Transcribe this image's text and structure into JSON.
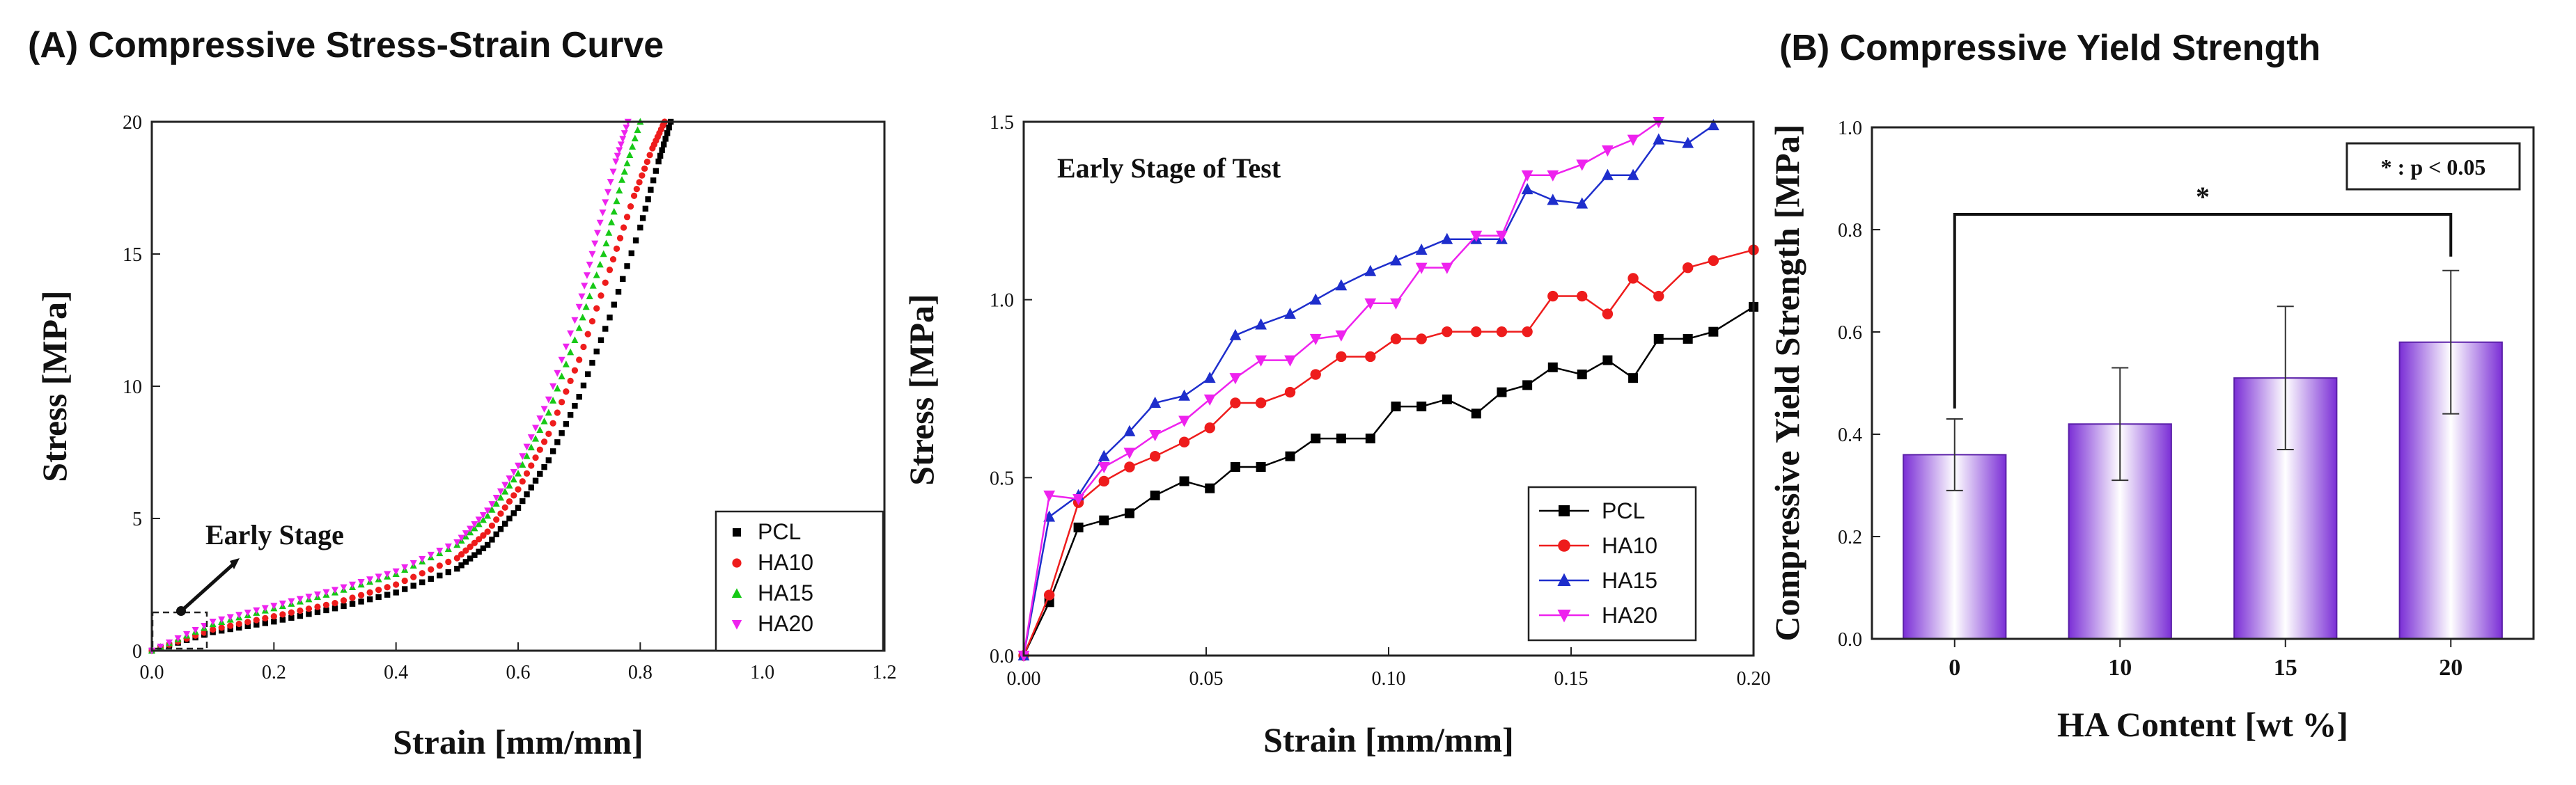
{
  "panel_titles": {
    "a": "(A) Compressive Stress-Strain Curve",
    "b": "(B) Compressive Yield Strength"
  },
  "colors": {
    "PCL": "#000000",
    "HA10": "#ee1c1c",
    "HA15": "#1e2ecc",
    "HA20": "#ee22ee",
    "HA15_scatter": "#16c916",
    "bar_edge": "#7b2fd6",
    "bar_center": "#ffffff"
  },
  "chart_data": [
    {
      "id": "stress-strain-full",
      "type": "scatter",
      "title": "",
      "xlabel": "Strain [mm/mm]",
      "ylabel": "Stress [MPa]",
      "xlim": [
        0,
        1.2
      ],
      "ylim": [
        0,
        20
      ],
      "xticks": [
        0.0,
        0.2,
        0.4,
        0.6,
        0.8,
        1.0,
        1.2
      ],
      "xtick_labels": [
        "0.0",
        "0.2",
        "0.4",
        "0.6",
        "0.8",
        "1.0",
        "1.2"
      ],
      "yticks": [
        0,
        5,
        10,
        15,
        20
      ],
      "ytick_labels": [
        "0",
        "5",
        "10",
        "15",
        "20"
      ],
      "legend_position": "bottom-right",
      "annotation": "Early Stage",
      "series": [
        {
          "name": "PCL",
          "x": [
            0.0,
            0.1,
            0.2,
            0.3,
            0.4,
            0.5,
            0.55,
            0.6,
            0.65,
            0.7,
            0.75,
            0.8,
            0.83,
            0.85
          ],
          "y": [
            0.0,
            0.7,
            1.1,
            1.6,
            2.2,
            3.1,
            4.0,
            5.4,
            7.2,
            9.6,
            12.6,
            16.0,
            18.5,
            20.0
          ]
        },
        {
          "name": "HA10",
          "x": [
            0.0,
            0.1,
            0.2,
            0.3,
            0.4,
            0.5,
            0.55,
            0.6,
            0.65,
            0.7,
            0.75,
            0.79,
            0.82,
            0.84
          ],
          "y": [
            0.0,
            0.8,
            1.3,
            1.8,
            2.5,
            3.5,
            4.5,
            6.1,
            8.2,
            11.0,
            14.4,
            17.2,
            19.0,
            20.0
          ]
        },
        {
          "name": "HA15",
          "x": [
            0.0,
            0.1,
            0.2,
            0.3,
            0.4,
            0.5,
            0.55,
            0.6,
            0.65,
            0.7,
            0.74,
            0.77,
            0.8
          ],
          "y": [
            0.0,
            1.0,
            1.6,
            2.2,
            2.9,
            4.0,
            5.1,
            6.7,
            9.0,
            12.2,
            15.0,
            17.8,
            20.0
          ]
        },
        {
          "name": "HA20",
          "x": [
            0.0,
            0.1,
            0.2,
            0.3,
            0.4,
            0.5,
            0.55,
            0.6,
            0.65,
            0.7,
            0.73,
            0.76,
            0.78
          ],
          "y": [
            0.0,
            1.1,
            1.7,
            2.3,
            3.0,
            4.1,
            5.3,
            7.0,
            9.5,
            13.0,
            15.8,
            18.5,
            20.0
          ]
        }
      ]
    },
    {
      "id": "stress-strain-early",
      "type": "line",
      "title": "Early Stage of Test",
      "xlabel": "Strain [mm/mm]",
      "ylabel": "Stress [MPa]",
      "xlim": [
        0,
        0.2
      ],
      "ylim": [
        0,
        1.5
      ],
      "xticks": [
        0.0,
        0.05,
        0.1,
        0.15,
        0.2
      ],
      "xtick_labels": [
        "0.00",
        "0.05",
        "0.10",
        "0.15",
        "0.20"
      ],
      "yticks": [
        0.0,
        0.5,
        1.0,
        1.5
      ],
      "ytick_labels": [
        "0.0",
        "0.5",
        "1.0",
        "1.5"
      ],
      "legend_position": "bottom-right",
      "series": [
        {
          "name": "PCL",
          "marker": "square",
          "x": [
            0.0,
            0.007,
            0.015,
            0.022,
            0.029,
            0.036,
            0.044,
            0.051,
            0.058,
            0.065,
            0.073,
            0.08,
            0.087,
            0.095,
            0.102,
            0.109,
            0.116,
            0.124,
            0.131,
            0.138,
            0.145,
            0.153,
            0.16,
            0.167,
            0.174,
            0.182,
            0.189,
            0.2
          ],
          "y": [
            0.0,
            0.15,
            0.36,
            0.38,
            0.4,
            0.45,
            0.49,
            0.47,
            0.53,
            0.53,
            0.56,
            0.61,
            0.61,
            0.61,
            0.7,
            0.7,
            0.72,
            0.68,
            0.74,
            0.76,
            0.81,
            0.79,
            0.83,
            0.78,
            0.89,
            0.89,
            0.91,
            0.98
          ]
        },
        {
          "name": "HA10",
          "marker": "circle",
          "x": [
            0.0,
            0.007,
            0.015,
            0.022,
            0.029,
            0.036,
            0.044,
            0.051,
            0.058,
            0.065,
            0.073,
            0.08,
            0.087,
            0.095,
            0.102,
            0.109,
            0.116,
            0.124,
            0.131,
            0.138,
            0.145,
            0.153,
            0.16,
            0.167,
            0.174,
            0.182,
            0.189,
            0.2
          ],
          "y": [
            0.0,
            0.17,
            0.43,
            0.49,
            0.53,
            0.56,
            0.6,
            0.64,
            0.71,
            0.71,
            0.74,
            0.79,
            0.84,
            0.84,
            0.89,
            0.89,
            0.91,
            0.91,
            0.91,
            0.91,
            1.01,
            1.01,
            0.96,
            1.06,
            1.01,
            1.09,
            1.11,
            1.14
          ]
        },
        {
          "name": "HA15",
          "marker": "triangle-up",
          "x": [
            0.0,
            0.007,
            0.015,
            0.022,
            0.029,
            0.036,
            0.044,
            0.051,
            0.058,
            0.065,
            0.073,
            0.08,
            0.087,
            0.095,
            0.102,
            0.109,
            0.116,
            0.124,
            0.131,
            0.138,
            0.145,
            0.153,
            0.16,
            0.167,
            0.174,
            0.182,
            0.189
          ],
          "y": [
            0.0,
            0.39,
            0.45,
            0.56,
            0.63,
            0.71,
            0.73,
            0.78,
            0.9,
            0.93,
            0.96,
            1.0,
            1.04,
            1.08,
            1.11,
            1.14,
            1.17,
            1.17,
            1.17,
            1.31,
            1.28,
            1.27,
            1.35,
            1.35,
            1.45,
            1.44,
            1.49
          ]
        },
        {
          "name": "HA20",
          "marker": "triangle-down",
          "x": [
            0.0,
            0.007,
            0.015,
            0.022,
            0.029,
            0.036,
            0.044,
            0.051,
            0.058,
            0.065,
            0.073,
            0.08,
            0.087,
            0.095,
            0.102,
            0.109,
            0.116,
            0.124,
            0.131,
            0.138,
            0.145,
            0.153,
            0.16,
            0.167,
            0.174
          ],
          "y": [
            0.0,
            0.45,
            0.44,
            0.53,
            0.57,
            0.62,
            0.66,
            0.72,
            0.78,
            0.83,
            0.83,
            0.89,
            0.9,
            0.99,
            0.99,
            1.09,
            1.09,
            1.18,
            1.18,
            1.35,
            1.35,
            1.38,
            1.42,
            1.45,
            1.5
          ]
        }
      ]
    },
    {
      "id": "yield-strength",
      "type": "bar",
      "title": "",
      "xlabel": "HA Content [wt %]",
      "ylabel": "Compressive Yield Strength [MPa]",
      "ylim": [
        0,
        1.0
      ],
      "yticks": [
        0.0,
        0.2,
        0.4,
        0.6,
        0.8,
        1.0
      ],
      "ytick_labels": [
        "0.0",
        "0.2",
        "0.4",
        "0.6",
        "0.8",
        "1.0"
      ],
      "categories": [
        "0",
        "10",
        "15",
        "20"
      ],
      "values": [
        0.36,
        0.42,
        0.51,
        0.58
      ],
      "errors": [
        0.07,
        0.11,
        0.14,
        0.14
      ],
      "significance": {
        "between": [
          "0",
          "20"
        ],
        "marker": "*",
        "legend": "* : p < 0.05"
      }
    }
  ]
}
